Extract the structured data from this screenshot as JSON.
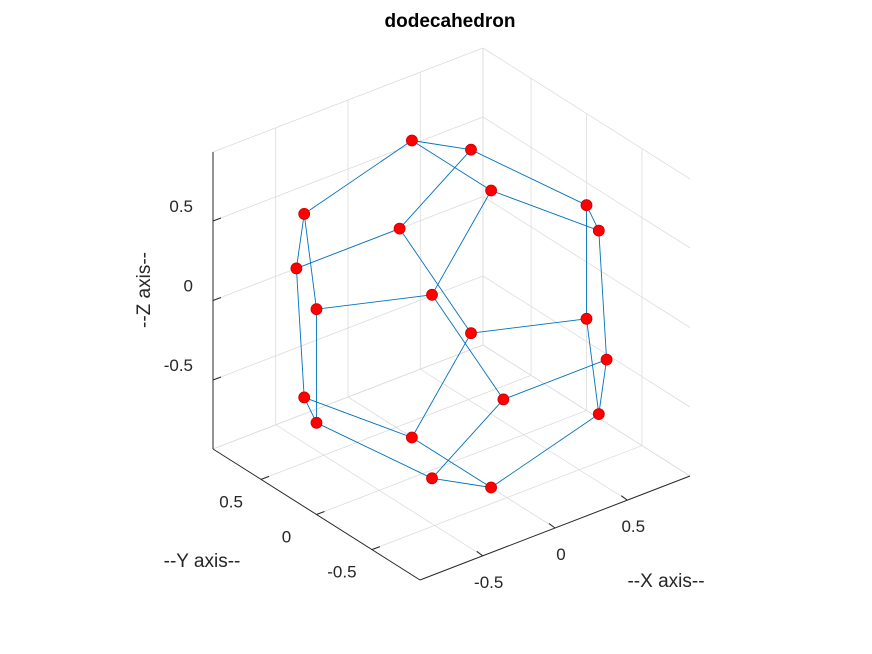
{
  "chart_data": {
    "type": "scatter3d",
    "title": "dodecahedron",
    "xlabel": "--X axis--",
    "ylabel": "--Y axis--",
    "zlabel": "--Z axis--",
    "xlim": [
      -0.934,
      0.934
    ],
    "ylim": [
      -0.934,
      0.934
    ],
    "zlim": [
      -0.934,
      0.934
    ],
    "x_ticks": [
      -0.5,
      0,
      0.5
    ],
    "y_ticks": [
      -0.5,
      0,
      0.5
    ],
    "z_ticks": [
      -0.5,
      0,
      0.5
    ],
    "x_tick_labels": [
      "-0.5",
      "0",
      "0.5"
    ],
    "y_tick_labels": [
      "-0.5",
      "0",
      "0.5"
    ],
    "z_tick_labels": [
      "-0.5",
      "0",
      "0.5"
    ],
    "grid": true,
    "edge_color": "#0072bd",
    "vertex_color": "#ff0000",
    "vertices": [
      [
        0.577,
        0.577,
        0.577
      ],
      [
        0.577,
        0.577,
        -0.577
      ],
      [
        0.577,
        -0.577,
        0.577
      ],
      [
        0.577,
        -0.577,
        -0.577
      ],
      [
        -0.577,
        0.577,
        0.577
      ],
      [
        -0.577,
        0.577,
        -0.577
      ],
      [
        -0.577,
        -0.577,
        0.577
      ],
      [
        -0.577,
        -0.577,
        -0.577
      ],
      [
        0,
        0.357,
        0.934
      ],
      [
        0,
        0.357,
        -0.934
      ],
      [
        0,
        -0.357,
        0.934
      ],
      [
        0,
        -0.357,
        -0.934
      ],
      [
        0.357,
        0.934,
        0
      ],
      [
        0.357,
        -0.934,
        0
      ],
      [
        -0.357,
        0.934,
        0
      ],
      [
        -0.357,
        -0.934,
        0
      ],
      [
        0.934,
        0,
        0.357
      ],
      [
        0.934,
        0,
        -0.357
      ],
      [
        -0.934,
        0,
        0.357
      ],
      [
        -0.934,
        0,
        -0.357
      ]
    ],
    "edges": [
      [
        0,
        8
      ],
      [
        0,
        12
      ],
      [
        0,
        16
      ],
      [
        1,
        9
      ],
      [
        1,
        12
      ],
      [
        1,
        17
      ],
      [
        2,
        10
      ],
      [
        2,
        13
      ],
      [
        2,
        16
      ],
      [
        3,
        11
      ],
      [
        3,
        13
      ],
      [
        3,
        17
      ],
      [
        4,
        8
      ],
      [
        4,
        14
      ],
      [
        4,
        18
      ],
      [
        5,
        9
      ],
      [
        5,
        14
      ],
      [
        5,
        19
      ],
      [
        6,
        10
      ],
      [
        6,
        15
      ],
      [
        6,
        18
      ],
      [
        7,
        11
      ],
      [
        7,
        15
      ],
      [
        7,
        19
      ],
      [
        8,
        10
      ],
      [
        9,
        11
      ],
      [
        12,
        14
      ],
      [
        13,
        15
      ],
      [
        16,
        17
      ],
      [
        18,
        19
      ]
    ]
  }
}
